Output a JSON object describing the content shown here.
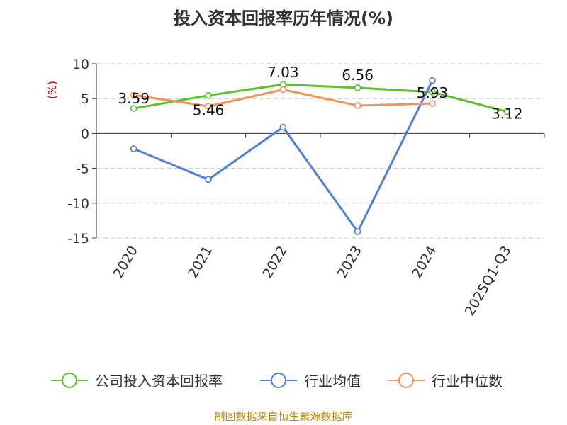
{
  "chart_data": {
    "type": "line",
    "title": "投入资本回报率历年情况(%)",
    "unit_label": "(%)",
    "categories": [
      "2020",
      "2021",
      "2022",
      "2023",
      "2024",
      "2025Q1-Q3"
    ],
    "ylim": [
      -15,
      10
    ],
    "yticks": [
      "10",
      "5",
      "0",
      "-5",
      "-10",
      "-15"
    ],
    "grid": true,
    "legend_position": "bottom",
    "series": [
      {
        "name": "公司投入资本回报率",
        "color": "#5cc22b",
        "values": [
          3.59,
          5.46,
          7.03,
          6.56,
          5.93,
          3.12
        ],
        "labels": [
          "3.59",
          "5.46",
          "7.03",
          "6.56",
          "5.93",
          "3.12"
        ]
      },
      {
        "name": "行业均值",
        "color": "#4e7fdd",
        "values": [
          -2.2,
          -6.6,
          0.9,
          -14.1,
          7.6,
          null
        ]
      },
      {
        "name": "行业中位数",
        "color": "#f39359",
        "values": [
          5.5,
          3.9,
          6.3,
          4.0,
          4.3,
          null
        ]
      }
    ],
    "source": "制图数据来自恒生聚源数据库"
  }
}
